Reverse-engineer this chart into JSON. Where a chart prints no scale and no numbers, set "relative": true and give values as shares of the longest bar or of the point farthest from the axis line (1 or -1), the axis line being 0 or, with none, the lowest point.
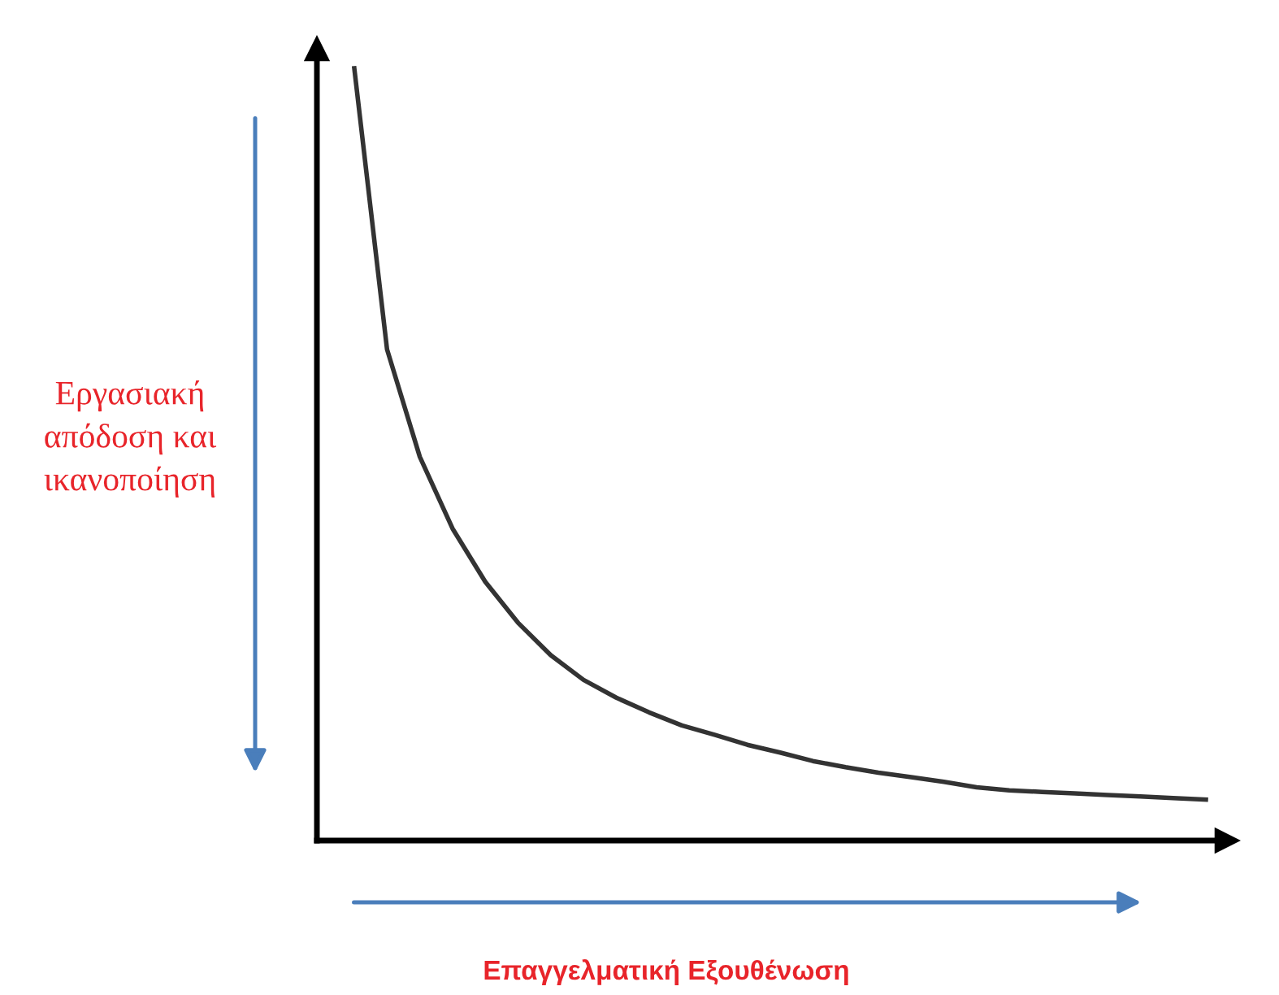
{
  "chart_data": {
    "type": "line",
    "relative": true,
    "xlabel": "Επαγγελματική Εξουθένωση",
    "ylabel": "Εργασιακή\nαπόδοση και\nικανοποίηση",
    "categories": [
      null,
      null,
      null,
      null,
      null,
      null,
      null,
      null,
      null,
      null,
      null,
      null,
      null,
      null,
      null,
      null,
      null,
      null,
      null,
      null,
      null,
      null,
      null,
      null,
      null,
      null,
      null
    ],
    "series": [
      {
        "color": "#333333",
        "values": [
          1.0,
          0.636,
          0.497,
          0.404,
          0.335,
          0.282,
          0.24,
          0.208,
          0.185,
          0.166,
          0.149,
          0.137,
          0.124,
          0.114,
          0.103,
          0.095,
          0.088,
          0.082,
          0.076,
          0.069,
          0.065,
          0.063,
          0.061,
          0.059,
          0.057,
          0.055,
          0.053
        ]
      }
    ],
    "marker": "none",
    "legend": false
  }
}
